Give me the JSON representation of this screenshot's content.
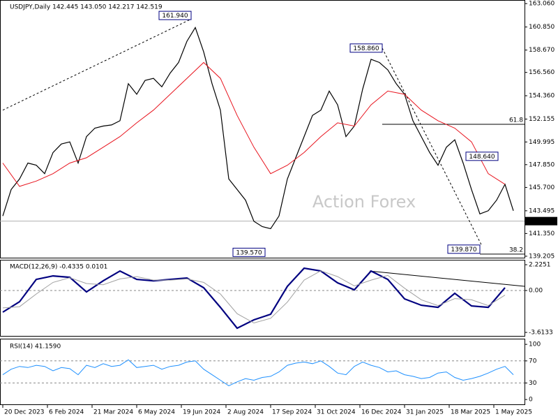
{
  "chart_data": [
    {
      "type": "line",
      "title": "USDJPY,Daily  142.445 143.050 142.217 142.519",
      "xlim": [
        -2,
        374
      ],
      "ylim": [
        139.0,
        163.4
      ],
      "yticks": [
        {
          "value": 163.06,
          "label": "163.060"
        },
        {
          "value": 160.85,
          "label": "160.850"
        },
        {
          "value": 158.67,
          "label": "158.670"
        },
        {
          "value": 156.56,
          "label": "156.560"
        },
        {
          "value": 154.36,
          "label": "154.360"
        },
        152.155,
        149.995,
        {
          "value": 147.85,
          "label": "147.850"
        },
        {
          "value": 145.7,
          "label": "145.700"
        },
        143.495,
        {
          "value": 141.35,
          "label": "141.350"
        },
        139.205
      ],
      "series": [
        {
          "color": "#000000",
          "width": 1.2,
          "x": [
            0,
            6,
            12,
            18,
            24,
            30,
            36,
            42,
            48,
            54,
            60,
            66,
            72,
            78,
            84,
            90,
            96,
            102,
            108,
            114,
            120,
            126,
            132,
            138,
            144,
            150,
            156,
            162,
            168,
            174,
            180,
            186,
            192,
            198,
            204,
            210,
            216,
            222,
            228,
            234,
            240,
            246,
            252,
            258,
            264,
            270,
            276,
            282,
            288,
            294,
            300,
            306,
            312,
            318,
            324,
            330,
            336,
            342,
            348,
            354,
            360,
            366
          ],
          "values": [
            143.0,
            145.5,
            146.5,
            148.0,
            147.8,
            147.0,
            149.0,
            149.8,
            150.0,
            148.0,
            150.5,
            151.3,
            151.5,
            151.6,
            152.0,
            155.5,
            154.5,
            155.8,
            156.0,
            155.2,
            156.5,
            157.5,
            159.5,
            160.8,
            158.5,
            155.5,
            153.0,
            146.5,
            145.5,
            144.5,
            142.5,
            142.0,
            141.8,
            143.0,
            146.5,
            148.5,
            150.5,
            152.5,
            153.0,
            154.8,
            153.5,
            150.5,
            151.5,
            155.0,
            157.8,
            157.5,
            156.8,
            155.5,
            154.5,
            152.0,
            150.5,
            149.0,
            147.8,
            149.5,
            150.2,
            148.0,
            145.5,
            143.2,
            143.5,
            144.5,
            146.0,
            143.5
          ]
        },
        {
          "color": "#e8141e",
          "width": 1,
          "x": [
            0,
            12,
            24,
            36,
            48,
            60,
            72,
            84,
            96,
            108,
            120,
            132,
            144,
            156,
            168,
            180,
            192,
            204,
            216,
            228,
            240,
            252,
            264,
            276,
            288,
            300,
            312,
            324,
            336,
            348,
            360
          ],
          "values": [
            148.0,
            145.8,
            146.3,
            147.0,
            148.0,
            148.5,
            149.5,
            150.5,
            151.8,
            153.0,
            154.5,
            156.0,
            157.5,
            156.0,
            152.5,
            149.5,
            147.0,
            147.8,
            149.0,
            150.5,
            151.8,
            151.5,
            153.5,
            154.8,
            154.5,
            153.0,
            152.0,
            151.3,
            150.0,
            147.0,
            146.0
          ]
        }
      ],
      "last": 142.519,
      "annotations": [
        {
          "day": 135,
          "value": 161.94,
          "label": "161.940",
          "side": "left"
        },
        {
          "day": 272,
          "value": 158.86,
          "label": "158.860",
          "side": "left"
        },
        {
          "day": 355,
          "value": 148.64,
          "label": "148.640",
          "side": "left"
        },
        {
          "day": 188,
          "value": 139.57,
          "label": "139.570",
          "side": "left"
        },
        {
          "day": 342,
          "value": 139.87,
          "label": "139.870",
          "side": "left"
        }
      ],
      "fib": [
        {
          "text": "61.8",
          "price": 151.66,
          "from": 272
        },
        {
          "text": "38.2",
          "price": 139.4,
          "from": 342
        }
      ],
      "trendlines": [
        {
          "from": [
            0,
            153.0
          ],
          "to": [
            135,
            161.6
          ]
        },
        {
          "from": [
            272,
            158.86
          ],
          "to": [
            343,
            140.3
          ]
        }
      ],
      "watermark": "Action Forex"
    },
    {
      "type": "line",
      "title": "MACD(12,26,9) -0.4335 0.0101",
      "xlim": [
        -2,
        374
      ],
      "ylim": [
        -3.975,
        2.65
      ],
      "yticks": [
        2.2251,
        {
          "value": 0,
          "label": "0.00"
        },
        -3.6133
      ],
      "levels": [
        0
      ],
      "series": [
        {
          "color": "#000080",
          "width": 2.2,
          "x": [
            0,
            12,
            24,
            36,
            48,
            60,
            72,
            84,
            96,
            108,
            120,
            132,
            144,
            156,
            168,
            180,
            192,
            204,
            216,
            228,
            240,
            252,
            264,
            276,
            288,
            300,
            312,
            324,
            336,
            348,
            360
          ],
          "values": [
            -1.87,
            -0.97,
            0.96,
            1.26,
            1.14,
            -0.12,
            0.84,
            1.68,
            0.96,
            0.84,
            0.96,
            1.08,
            0.24,
            -1.45,
            -3.25,
            -2.53,
            -2.05,
            0.36,
            1.92,
            1.68,
            0.66,
            0.06,
            1.68,
            0.96,
            -0.72,
            -1.27,
            -1.45,
            -0.24,
            -1.33,
            -1.45,
            0.24
          ]
        },
        {
          "color": "#a0a0a0",
          "width": 1,
          "x": [
            0,
            12,
            24,
            36,
            48,
            60,
            72,
            84,
            96,
            108,
            120,
            132,
            144,
            156,
            168,
            180,
            192,
            204,
            216,
            228,
            240,
            252,
            264,
            276,
            288,
            300,
            312,
            324,
            336,
            348,
            360
          ],
          "values": [
            -1.5,
            -1.4,
            -0.3,
            0.7,
            1.1,
            0.6,
            0.5,
            1.0,
            1.2,
            0.9,
            0.9,
            1.0,
            0.7,
            -0.3,
            -2.0,
            -2.8,
            -2.4,
            -1.0,
            0.9,
            1.7,
            1.2,
            0.4,
            0.9,
            1.3,
            0.2,
            -0.8,
            -1.3,
            -0.7,
            -0.8,
            -1.3,
            -0.4
          ]
        }
      ],
      "trendlines_solid": [
        {
          "from": [
            263,
            1.68
          ],
          "to": [
            374,
            0.36
          ]
        }
      ]
    },
    {
      "type": "line",
      "title": "RSI(14) 41.1590",
      "xlim": [
        -2,
        374
      ],
      "ylim": [
        -10,
        109
      ],
      "yticks": [
        100,
        70,
        30,
        0
      ],
      "levels": [
        70,
        30
      ],
      "xticks": [
        {
          "value": 0,
          "label": "20 Dec 2023"
        },
        {
          "value": 32,
          "label": "6 Feb 2024"
        },
        {
          "value": 64,
          "label": "21 Mar 2024"
        },
        {
          "value": 96,
          "label": "6 May 2024"
        },
        {
          "value": 128,
          "label": "19 Jun 2024"
        },
        {
          "value": 160,
          "label": "2 Aug 2024"
        },
        {
          "value": 192,
          "label": "17 Sep 2024"
        },
        {
          "value": 224,
          "label": "31 Oct 2024"
        },
        {
          "value": 256,
          "label": "16 Dec 2024"
        },
        {
          "value": 288,
          "label": "31 Jan 2025"
        },
        {
          "value": 320,
          "label": "18 Mar 2025"
        },
        {
          "value": 352,
          "label": "1 May 2025"
        }
      ],
      "series": [
        {
          "color": "#1e90ff",
          "width": 1,
          "x": [
            0,
            6,
            12,
            18,
            24,
            30,
            36,
            42,
            48,
            54,
            60,
            66,
            72,
            78,
            84,
            90,
            96,
            102,
            108,
            114,
            120,
            126,
            132,
            138,
            144,
            150,
            156,
            162,
            168,
            174,
            180,
            186,
            192,
            198,
            204,
            210,
            216,
            222,
            228,
            234,
            240,
            246,
            252,
            258,
            264,
            270,
            276,
            282,
            288,
            294,
            300,
            306,
            312,
            318,
            324,
            330,
            336,
            342,
            348,
            354,
            360,
            366
          ],
          "values": [
            45,
            55,
            60,
            58,
            62,
            60,
            52,
            58,
            56,
            45,
            62,
            58,
            65,
            60,
            62,
            72,
            58,
            60,
            62,
            55,
            60,
            62,
            68,
            70,
            55,
            45,
            35,
            25,
            32,
            38,
            35,
            40,
            42,
            50,
            62,
            66,
            68,
            65,
            70,
            60,
            48,
            45,
            60,
            68,
            62,
            58,
            50,
            52,
            45,
            42,
            38,
            40,
            48,
            50,
            40,
            35,
            38,
            42,
            48,
            55,
            60,
            45
          ]
        }
      ]
    }
  ]
}
